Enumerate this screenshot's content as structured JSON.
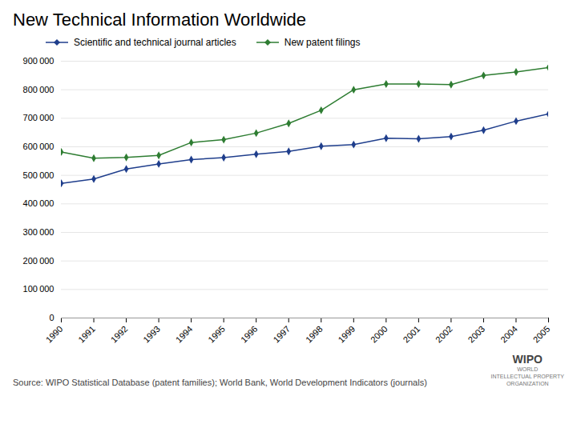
{
  "chart_data": {
    "type": "line",
    "title": "New Technical Information Worldwide",
    "annotations": [
      "Source: WIPO Statistical Database (patent families); World Bank, World Development Indicators (journals)",
      "WIPO",
      "WORLD\nINTELLECTUAL PROPERTY\nORGANIZATION"
    ],
    "x": [
      1990,
      1991,
      1992,
      1993,
      1994,
      1995,
      1996,
      1997,
      1998,
      1999,
      2000,
      2001,
      2002,
      2003,
      2004,
      2005
    ],
    "series": [
      {
        "name": "Scientific and technical journal articles",
        "color": "#1F3E8C",
        "marker": "diamond",
        "values": [
          472000,
          487000,
          522000,
          540000,
          555000,
          562000,
          574000,
          584000,
          602000,
          608000,
          630000,
          628000,
          636000,
          658000,
          690000,
          715000
        ]
      },
      {
        "name": "New patent filings",
        "color": "#2E7D32",
        "marker": "diamond",
        "values": [
          582000,
          560000,
          563000,
          570000,
          615000,
          625000,
          648000,
          682000,
          728000,
          800000,
          820000,
          820000,
          818000,
          850000,
          862000,
          878000
        ]
      }
    ],
    "xlim": [
      1990,
      2005
    ],
    "xticks": [
      1990,
      1991,
      1992,
      1993,
      1994,
      1995,
      1996,
      1997,
      1998,
      1999,
      2000,
      2001,
      2002,
      2003,
      2004,
      2005
    ],
    "ylim": [
      0,
      900000
    ],
    "yticks": [
      0,
      {
        "value": 100000,
        "label": "100 000"
      },
      {
        "value": 200000,
        "label": "200 000"
      },
      {
        "value": 300000,
        "label": "300 000"
      },
      {
        "value": 400000,
        "label": "400 000"
      },
      {
        "value": 500000,
        "label": "500 000"
      },
      {
        "value": 600000,
        "label": "600 000"
      },
      {
        "value": 700000,
        "label": "700 000"
      },
      {
        "value": 800000,
        "label": "800 000"
      },
      {
        "value": 900000,
        "label": "900 000"
      }
    ],
    "grid": true,
    "legend": "upper left"
  }
}
